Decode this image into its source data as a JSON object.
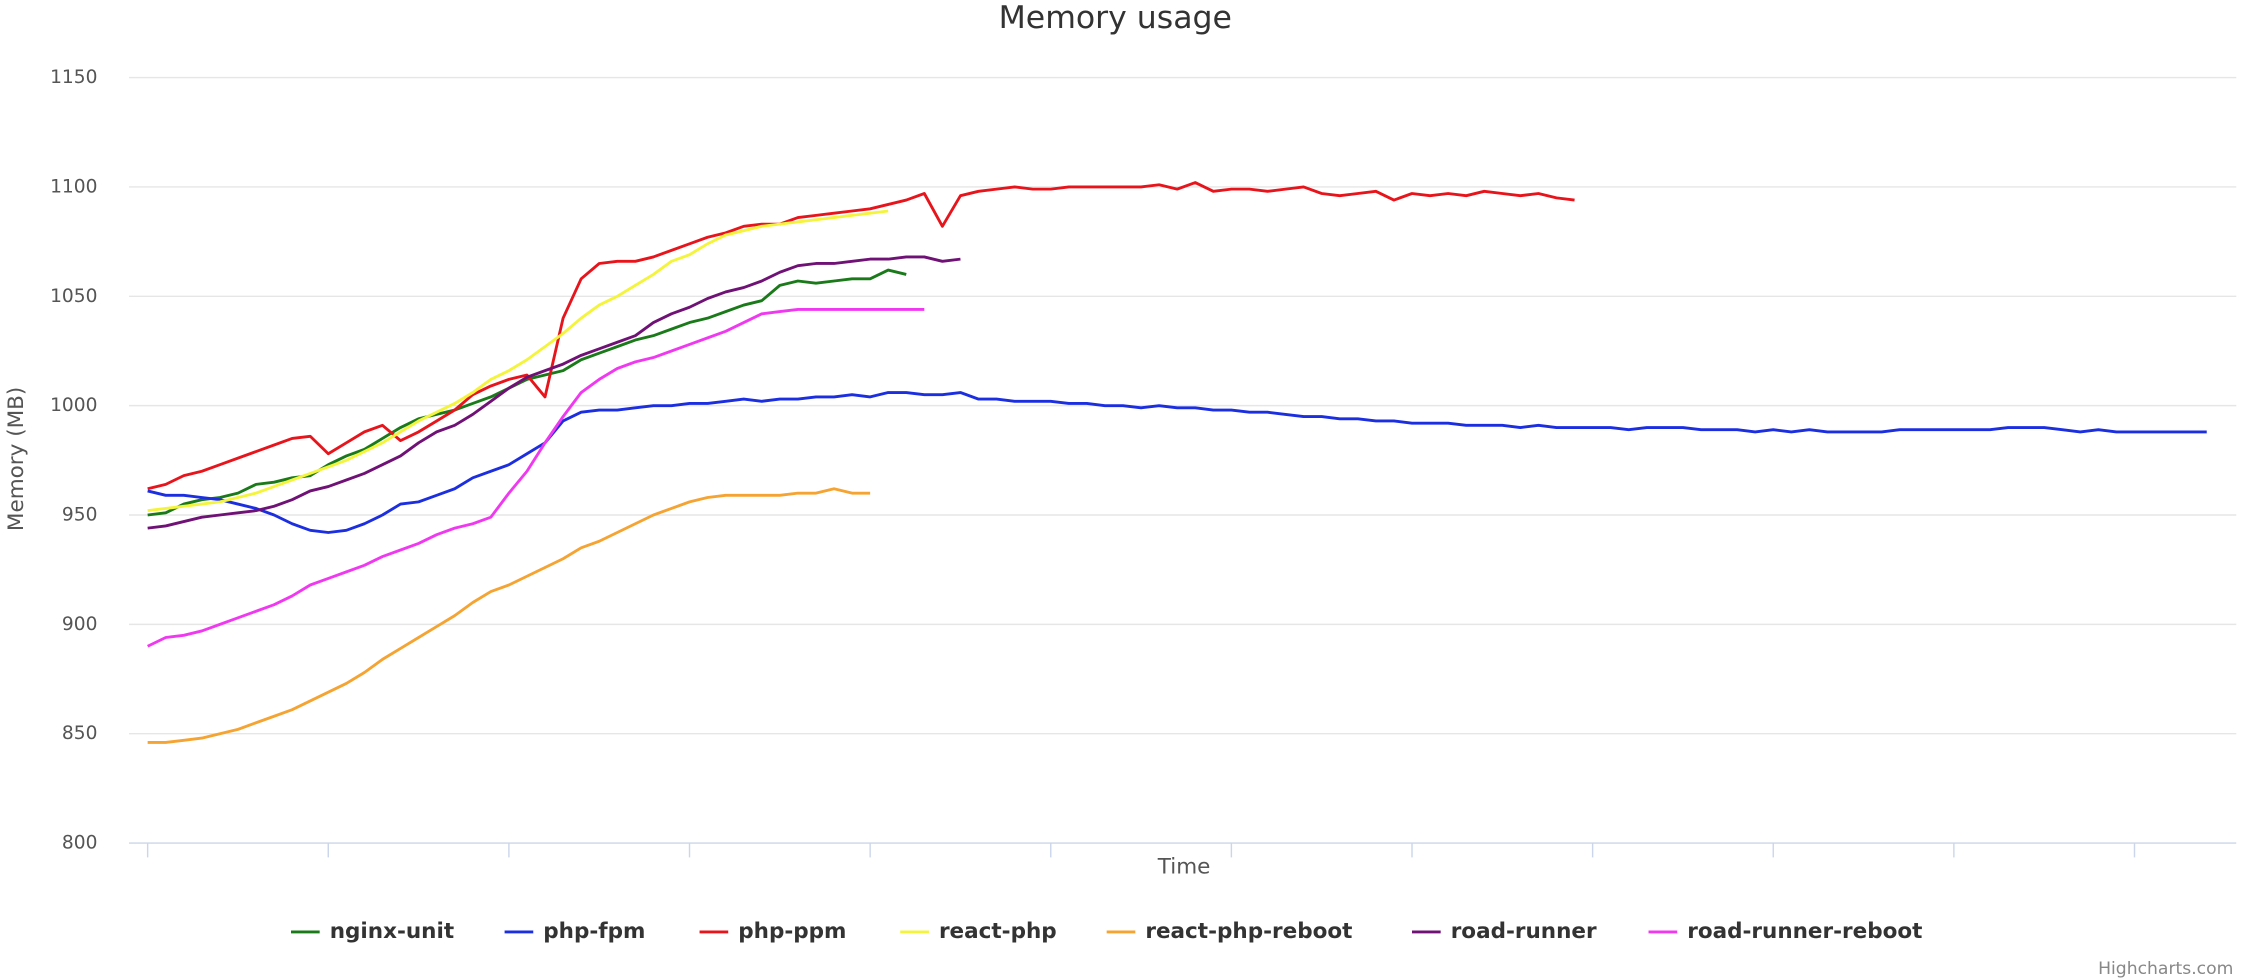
{
  "chart_data": {
    "type": "line",
    "title": "Memory usage",
    "xlabel": "Time",
    "ylabel": "Memory (MB)",
    "credits": "Highcharts.com",
    "ylim": [
      800,
      1150
    ],
    "yticks": [
      800,
      850,
      900,
      950,
      1000,
      1050,
      1100,
      1150
    ],
    "grid": true,
    "legend": "bottom",
    "series": [
      {
        "name": "nginx-unit",
        "color": "#1a7a1a",
        "values": [
          950,
          951,
          955,
          957,
          958,
          960,
          964,
          965,
          967,
          968,
          973,
          977,
          980,
          985,
          990,
          994,
          996,
          998,
          1001,
          1004,
          1008,
          1012,
          1014,
          1016,
          1021,
          1024,
          1027,
          1030,
          1032,
          1035,
          1038,
          1040,
          1043,
          1046,
          1048,
          1055,
          1057,
          1056,
          1057,
          1058,
          1058,
          1062,
          1060
        ]
      },
      {
        "name": "php-fpm",
        "color": "#1b2ee0",
        "values": [
          961,
          959,
          959,
          958,
          957,
          955,
          953,
          950,
          946,
          943,
          942,
          943,
          946,
          950,
          955,
          956,
          959,
          962,
          967,
          970,
          973,
          978,
          983,
          993,
          997,
          998,
          998,
          999,
          1000,
          1000,
          1001,
          1001,
          1002,
          1003,
          1002,
          1003,
          1003,
          1004,
          1004,
          1005,
          1004,
          1006,
          1006,
          1005,
          1005,
          1006,
          1003,
          1003,
          1002,
          1002,
          1002,
          1001,
          1001,
          1000,
          1000,
          999,
          1000,
          999,
          999,
          998,
          998,
          997,
          997,
          996,
          995,
          995,
          994,
          994,
          993,
          993,
          992,
          992,
          992,
          991,
          991,
          991,
          990,
          991,
          990,
          990,
          990,
          990,
          989,
          990,
          990,
          990,
          989,
          989,
          989,
          988,
          989,
          988,
          989,
          988,
          988,
          988,
          988,
          989,
          989,
          989,
          989,
          989,
          989,
          990,
          990,
          990,
          989,
          988,
          989,
          988,
          988,
          988,
          988,
          988,
          988
        ]
      },
      {
        "name": "php-ppm",
        "color": "#e8141b",
        "values": [
          962,
          964,
          968,
          970,
          973,
          976,
          979,
          982,
          985,
          986,
          978,
          983,
          988,
          991,
          984,
          988,
          993,
          998,
          1005,
          1009,
          1012,
          1014,
          1004,
          1040,
          1058,
          1065,
          1066,
          1066,
          1068,
          1071,
          1074,
          1077,
          1079,
          1082,
          1083,
          1083,
          1086,
          1087,
          1088,
          1089,
          1090,
          1092,
          1094,
          1097,
          1082,
          1096,
          1098,
          1099,
          1100,
          1099,
          1099,
          1100,
          1100,
          1100,
          1100,
          1100,
          1101,
          1099,
          1102,
          1098,
          1099,
          1099,
          1098,
          1099,
          1100,
          1097,
          1096,
          1097,
          1098,
          1094,
          1097,
          1096,
          1097,
          1096,
          1098,
          1097,
          1096,
          1097,
          1095,
          1094
        ]
      },
      {
        "name": "react-php",
        "color": "#f4f43c",
        "values": [
          952,
          953,
          954,
          955,
          956,
          958,
          960,
          963,
          966,
          969,
          972,
          975,
          979,
          983,
          988,
          993,
          997,
          1001,
          1006,
          1012,
          1016,
          1021,
          1027,
          1033,
          1040,
          1046,
          1050,
          1055,
          1060,
          1066,
          1069,
          1074,
          1078,
          1080,
          1082,
          1083,
          1084,
          1085,
          1086,
          1087,
          1088,
          1089
        ]
      },
      {
        "name": "react-php-reboot",
        "color": "#f5a331",
        "values": [
          846,
          846,
          847,
          848,
          850,
          852,
          855,
          858,
          861,
          865,
          869,
          873,
          878,
          884,
          889,
          894,
          899,
          904,
          910,
          915,
          918,
          922,
          926,
          930,
          935,
          938,
          942,
          946,
          950,
          953,
          956,
          958,
          959,
          959,
          959,
          959,
          960,
          960,
          962,
          960,
          960
        ]
      },
      {
        "name": "road-runner",
        "color": "#6f1175",
        "values": [
          944,
          945,
          947,
          949,
          950,
          951,
          952,
          954,
          957,
          961,
          963,
          966,
          969,
          973,
          977,
          983,
          988,
          991,
          996,
          1002,
          1008,
          1013,
          1016,
          1019,
          1023,
          1026,
          1029,
          1032,
          1038,
          1042,
          1045,
          1049,
          1052,
          1054,
          1057,
          1061,
          1064,
          1065,
          1065,
          1066,
          1067,
          1067,
          1068,
          1068,
          1066,
          1067
        ]
      },
      {
        "name": "road-runner-reboot",
        "color": "#f038f0",
        "values": [
          890,
          894,
          895,
          897,
          900,
          903,
          906,
          909,
          913,
          918,
          921,
          924,
          927,
          931,
          934,
          937,
          941,
          944,
          946,
          949,
          960,
          970,
          983,
          995,
          1006,
          1012,
          1017,
          1020,
          1022,
          1025,
          1028,
          1031,
          1034,
          1038,
          1042,
          1043,
          1044,
          1044,
          1044,
          1044,
          1044,
          1044,
          1044,
          1044
        ]
      }
    ]
  }
}
